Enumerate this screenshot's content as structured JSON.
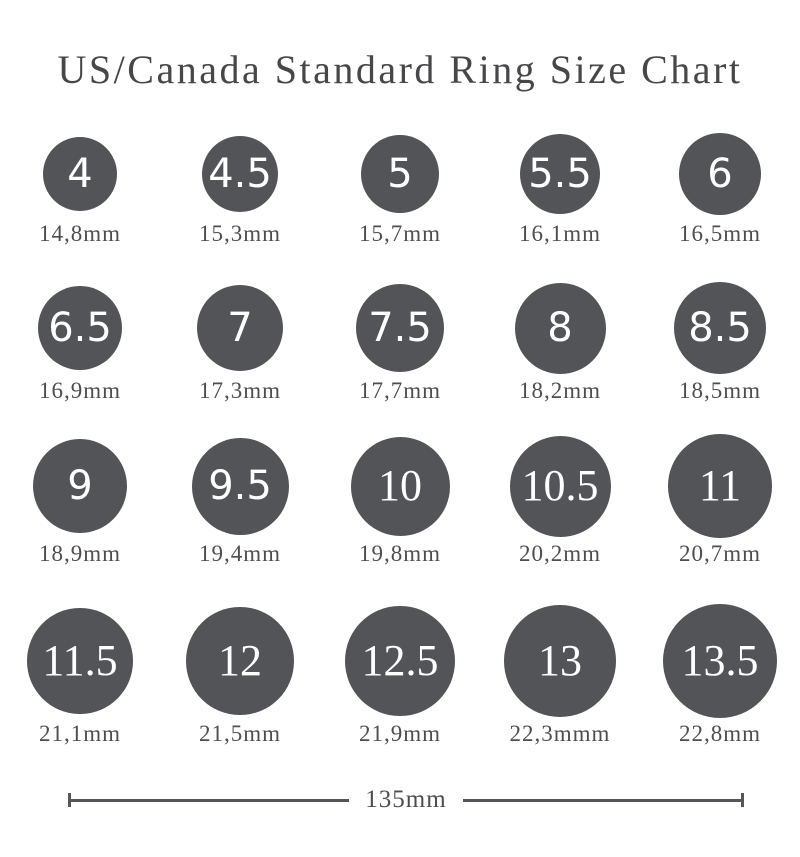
{
  "title": "US/Canada Standard Ring Size Chart",
  "colors": {
    "circle_fill": "#535458",
    "number_text": "#ffffff",
    "label_text": "#4d4e50",
    "title_text": "#474749",
    "scale_line": "#55565a"
  },
  "grid": {
    "rows": [
      {
        "cells": [
          {
            "size": "4",
            "diameter_label": "14,8mm",
            "diameter_mm": 14.8
          },
          {
            "size": "4.5",
            "diameter_label": "15,3mm",
            "diameter_mm": 15.3
          },
          {
            "size": "5",
            "diameter_label": "15,7mm",
            "diameter_mm": 15.7
          },
          {
            "size": "5.5",
            "diameter_label": "16,1mm",
            "diameter_mm": 16.1
          },
          {
            "size": "6",
            "diameter_label": "16,5mm",
            "diameter_mm": 16.5
          }
        ]
      },
      {
        "cells": [
          {
            "size": "6.5",
            "diameter_label": "16,9mm",
            "diameter_mm": 16.9
          },
          {
            "size": "7",
            "diameter_label": "17,3mm",
            "diameter_mm": 17.3
          },
          {
            "size": "7.5",
            "diameter_label": "17,7mm",
            "diameter_mm": 17.7
          },
          {
            "size": "8",
            "diameter_label": "18,2mm",
            "diameter_mm": 18.2
          },
          {
            "size": "8.5",
            "diameter_label": "18,5mm",
            "diameter_mm": 18.5
          }
        ]
      },
      {
        "cells": [
          {
            "size": "9",
            "diameter_label": "18,9mm",
            "diameter_mm": 18.9
          },
          {
            "size": "9.5",
            "diameter_label": "19,4mm",
            "diameter_mm": 19.4
          },
          {
            "size": "10",
            "diameter_label": "19,8mm",
            "diameter_mm": 19.8
          },
          {
            "size": "10.5",
            "diameter_label": "20,2mm",
            "diameter_mm": 20.2
          },
          {
            "size": "11",
            "diameter_label": "20,7mm",
            "diameter_mm": 20.7
          }
        ]
      },
      {
        "cells": [
          {
            "size": "11.5",
            "diameter_label": "21,1mm",
            "diameter_mm": 21.1
          },
          {
            "size": "12",
            "diameter_label": "21,5mm",
            "diameter_mm": 21.5
          },
          {
            "size": "12.5",
            "diameter_label": "21,9mm",
            "diameter_mm": 21.9
          },
          {
            "size": "13",
            "diameter_label": "22,3mmm",
            "diameter_mm": 22.3
          },
          {
            "size": "13.5",
            "diameter_label": "22,8mm",
            "diameter_mm": 22.8
          }
        ]
      }
    ]
  },
  "scale_bar": {
    "label": "135mm"
  },
  "chart_data": {
    "type": "table",
    "title": "US/Canada Standard Ring Size Chart",
    "columns": [
      "us_canada_ring_size",
      "inside_diameter_mm"
    ],
    "rows": [
      [
        4,
        14.8
      ],
      [
        4.5,
        15.3
      ],
      [
        5,
        15.7
      ],
      [
        5.5,
        16.1
      ],
      [
        6,
        16.5
      ],
      [
        6.5,
        16.9
      ],
      [
        7,
        17.3
      ],
      [
        7.5,
        17.7
      ],
      [
        8,
        18.2
      ],
      [
        8.5,
        18.5
      ],
      [
        9,
        18.9
      ],
      [
        9.5,
        19.4
      ],
      [
        10,
        19.8
      ],
      [
        10.5,
        20.2
      ],
      [
        11,
        20.7
      ],
      [
        11.5,
        21.1
      ],
      [
        12,
        21.5
      ],
      [
        12.5,
        21.9
      ],
      [
        13,
        22.3
      ],
      [
        13.5,
        22.8
      ]
    ],
    "scale_bar_mm": 135,
    "layout": "5 columns x 4 rows of filled circles, circle diameter drawn to scale at 5px per mm"
  }
}
